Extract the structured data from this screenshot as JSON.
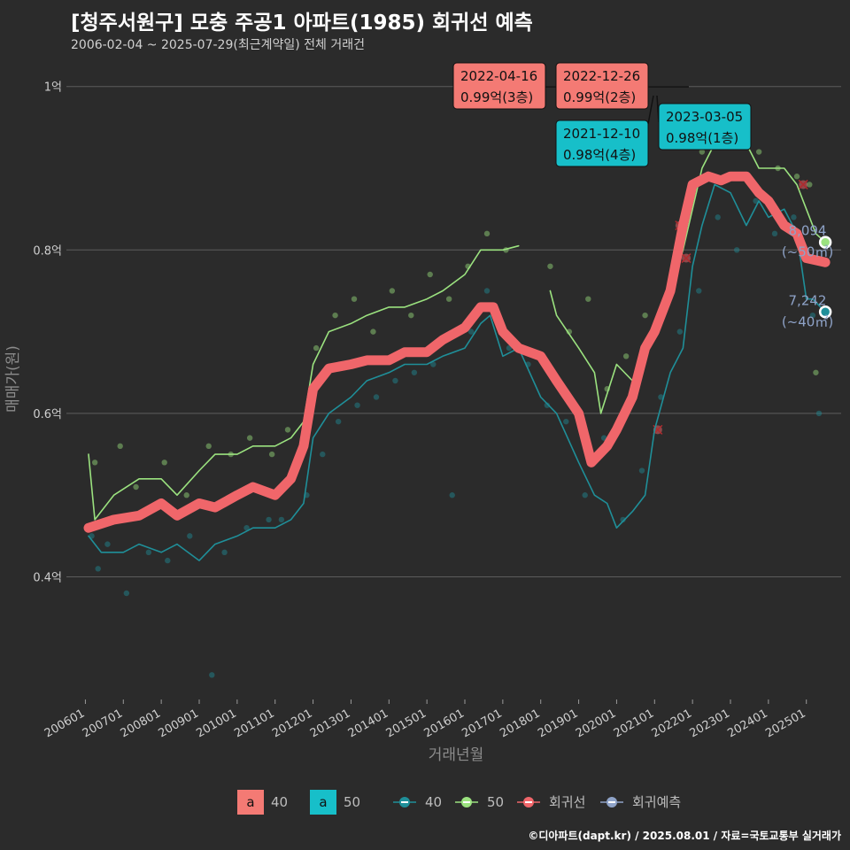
{
  "header": {
    "title": "[청주서원구] 모충 주공1 아파트(1985) 회귀선 예측",
    "subtitle": "2006-02-04 ~ 2025-07-29(최근계약일) 전체 거래건"
  },
  "footer": {
    "credit": "©디아파트(dapt.kr) / 2025.08.01 / 자료=국토교통부 실거래가"
  },
  "colors": {
    "bg": "#2b2b2b",
    "grid": "#5c5c5c",
    "s40": "#1f8f99",
    "s50": "#9be27f",
    "reg": "#f0666a",
    "pred": "#8fa3c8",
    "ann_red": "#f47a74",
    "ann_cyan": "#17bfc9"
  },
  "chart_data": {
    "type": "line",
    "xlabel": "거래년월",
    "ylabel": "매매가(원)",
    "y_ticks": [
      {
        "value": 0.4,
        "label": "0.4억"
      },
      {
        "value": 0.6,
        "label": "0.6억"
      },
      {
        "value": 0.8,
        "label": "0.8억"
      },
      {
        "value": 1.0,
        "label": "1억"
      }
    ],
    "x_ticks": [
      "200601",
      "200701",
      "200801",
      "200901",
      "201001",
      "201101",
      "201201",
      "201301",
      "201401",
      "201501",
      "201601",
      "201701",
      "201801",
      "201901",
      "202001",
      "202101",
      "202201",
      "202301",
      "202401",
      "202501"
    ],
    "ylim": [
      0.25,
      1.03
    ],
    "xlim": [
      "2005-07",
      "2025-12"
    ],
    "series": [
      {
        "name": "40",
        "values": [
          [
            "2006-02",
            0.45
          ],
          [
            "2006-06",
            0.43
          ],
          [
            "2007-01",
            0.43
          ],
          [
            "2007-06",
            0.44
          ],
          [
            "2008-01",
            0.43
          ],
          [
            "2008-06",
            0.44
          ],
          [
            "2009-01",
            0.42
          ],
          [
            "2009-06",
            0.44
          ],
          [
            "2010-01",
            0.45
          ],
          [
            "2010-06",
            0.46
          ],
          [
            "2011-01",
            0.46
          ],
          [
            "2011-06",
            0.47
          ],
          [
            "2011-10",
            0.49
          ],
          [
            "2012-01",
            0.57
          ],
          [
            "2012-06",
            0.6
          ],
          [
            "2013-01",
            0.62
          ],
          [
            "2013-06",
            0.64
          ],
          [
            "2014-01",
            0.65
          ],
          [
            "2014-06",
            0.66
          ],
          [
            "2015-01",
            0.66
          ],
          [
            "2015-06",
            0.67
          ],
          [
            "2016-01",
            0.68
          ],
          [
            "2016-06",
            0.71
          ],
          [
            "2016-09",
            0.72
          ],
          [
            "2017-01",
            0.67
          ],
          [
            "2017-06",
            0.68
          ],
          [
            "2018-01",
            0.62
          ],
          [
            "2018-06",
            0.6
          ],
          [
            "2019-01",
            0.54
          ],
          [
            "2019-06",
            0.5
          ],
          [
            "2019-10",
            0.49
          ],
          [
            "2020-01",
            0.46
          ],
          [
            "2020-06",
            0.48
          ],
          [
            "2020-10",
            0.5
          ],
          [
            "2021-01",
            0.58
          ],
          [
            "2021-06",
            0.65
          ],
          [
            "2021-10",
            0.68
          ],
          [
            "2022-01",
            0.78
          ],
          [
            "2022-04",
            0.83
          ],
          [
            "2022-08",
            0.88
          ],
          [
            "2023-01",
            0.87
          ],
          [
            "2023-06",
            0.83
          ],
          [
            "2023-10",
            0.86
          ],
          [
            "2024-01",
            0.84
          ],
          [
            "2024-06",
            0.85
          ],
          [
            "2024-10",
            0.82
          ],
          [
            "2025-01",
            0.74
          ],
          [
            "2025-03",
            0.74
          ],
          [
            "2025-07",
            0.7242
          ]
        ]
      },
      {
        "name": "50",
        "values": [
          [
            "2006-02",
            0.55
          ],
          [
            "2006-04",
            0.47
          ],
          [
            "2006-10",
            0.5
          ],
          [
            "2007-06",
            0.52
          ],
          [
            "2008-01",
            0.52
          ],
          [
            "2008-06",
            0.5
          ],
          [
            "2009-01",
            0.53
          ],
          [
            "2009-06",
            0.55
          ],
          [
            "2010-01",
            0.55
          ],
          [
            "2010-06",
            0.56
          ],
          [
            "2011-01",
            0.56
          ],
          [
            "2011-06",
            0.57
          ],
          [
            "2011-10",
            0.59
          ],
          [
            "2012-01",
            0.66
          ],
          [
            "2012-06",
            0.7
          ],
          [
            "2013-01",
            0.71
          ],
          [
            "2013-06",
            0.72
          ],
          [
            "2014-01",
            0.73
          ],
          [
            "2014-06",
            0.73
          ],
          [
            "2015-01",
            0.74
          ],
          [
            "2015-06",
            0.75
          ],
          [
            "2016-01",
            0.77
          ],
          [
            "2016-06",
            0.8
          ],
          [
            "2017-01",
            0.8
          ],
          [
            "2017-06",
            0.805
          ],
          null,
          [
            "2018-04",
            0.75
          ],
          [
            "2018-06",
            0.72
          ],
          [
            "2019-01",
            0.68
          ],
          [
            "2019-06",
            0.65
          ],
          [
            "2019-08",
            0.6
          ],
          [
            "2020-01",
            0.66
          ],
          [
            "2020-06",
            0.64
          ],
          [
            "2020-10",
            0.68
          ],
          [
            "2021-01",
            0.7
          ],
          [
            "2021-06",
            0.75
          ],
          [
            "2021-10",
            0.8
          ],
          [
            "2022-01",
            0.85
          ],
          [
            "2022-04",
            0.9
          ],
          [
            "2022-08",
            0.93
          ],
          [
            "2023-01",
            0.95
          ],
          [
            "2023-06",
            0.93
          ],
          [
            "2023-10",
            0.9
          ],
          [
            "2024-01",
            0.9
          ],
          [
            "2024-06",
            0.9
          ],
          [
            "2024-10",
            0.88
          ],
          [
            "2025-01",
            0.85
          ],
          [
            "2025-04",
            0.82
          ],
          [
            "2025-07",
            0.8094
          ]
        ]
      },
      {
        "name": "회귀선",
        "values": [
          [
            "2006-02",
            0.46
          ],
          [
            "2006-10",
            0.47
          ],
          [
            "2007-06",
            0.475
          ],
          [
            "2008-01",
            0.49
          ],
          [
            "2008-06",
            0.475
          ],
          [
            "2009-01",
            0.49
          ],
          [
            "2009-06",
            0.485
          ],
          [
            "2010-01",
            0.5
          ],
          [
            "2010-06",
            0.51
          ],
          [
            "2011-01",
            0.5
          ],
          [
            "2011-06",
            0.52
          ],
          [
            "2011-10",
            0.56
          ],
          [
            "2012-01",
            0.63
          ],
          [
            "2012-06",
            0.655
          ],
          [
            "2013-01",
            0.66
          ],
          [
            "2013-06",
            0.665
          ],
          [
            "2014-01",
            0.665
          ],
          [
            "2014-06",
            0.675
          ],
          [
            "2015-01",
            0.675
          ],
          [
            "2015-06",
            0.69
          ],
          [
            "2016-01",
            0.705
          ],
          [
            "2016-06",
            0.73
          ],
          [
            "2016-10",
            0.73
          ],
          [
            "2017-01",
            0.7
          ],
          [
            "2017-06",
            0.68
          ],
          [
            "2018-01",
            0.67
          ],
          [
            "2018-06",
            0.64
          ],
          [
            "2019-01",
            0.6
          ],
          [
            "2019-05",
            0.54
          ],
          [
            "2019-10",
            0.56
          ],
          [
            "2020-01",
            0.58
          ],
          [
            "2020-06",
            0.62
          ],
          [
            "2020-10",
            0.68
          ],
          [
            "2021-01",
            0.7
          ],
          [
            "2021-06",
            0.75
          ],
          [
            "2021-10",
            0.83
          ],
          [
            "2022-01",
            0.88
          ],
          [
            "2022-06",
            0.89
          ],
          [
            "2022-10",
            0.885
          ],
          [
            "2023-01",
            0.89
          ],
          [
            "2023-06",
            0.89
          ],
          [
            "2023-10",
            0.87
          ],
          [
            "2024-01",
            0.86
          ],
          [
            "2024-06",
            0.83
          ],
          [
            "2024-10",
            0.82
          ],
          [
            "2025-01",
            0.79
          ],
          [
            "2025-07",
            0.785
          ]
        ]
      }
    ],
    "scatter_40": [
      [
        "2006-03",
        0.45
      ],
      [
        "2006-05",
        0.41
      ],
      [
        "2006-08",
        0.44
      ],
      [
        "2007-02",
        0.38
      ],
      [
        "2007-09",
        0.43
      ],
      [
        "2008-03",
        0.42
      ],
      [
        "2008-10",
        0.45
      ],
      [
        "2009-05",
        0.28
      ],
      [
        "2009-09",
        0.43
      ],
      [
        "2010-04",
        0.46
      ],
      [
        "2010-11",
        0.47
      ],
      [
        "2011-03",
        0.47
      ],
      [
        "2011-11",
        0.5
      ],
      [
        "2012-04",
        0.55
      ],
      [
        "2012-09",
        0.59
      ],
      [
        "2013-03",
        0.61
      ],
      [
        "2013-09",
        0.62
      ],
      [
        "2014-03",
        0.64
      ],
      [
        "2014-09",
        0.65
      ],
      [
        "2015-03",
        0.66
      ],
      [
        "2015-09",
        0.5
      ],
      [
        "2016-03",
        0.7
      ],
      [
        "2016-08",
        0.75
      ],
      [
        "2017-03",
        0.68
      ],
      [
        "2017-09",
        0.66
      ],
      [
        "2018-03",
        0.61
      ],
      [
        "2018-09",
        0.59
      ],
      [
        "2019-03",
        0.5
      ],
      [
        "2019-09",
        0.57
      ],
      [
        "2020-03",
        0.47
      ],
      [
        "2020-09",
        0.53
      ],
      [
        "2021-03",
        0.62
      ],
      [
        "2021-09",
        0.7
      ],
      [
        "2022-03",
        0.75
      ],
      [
        "2022-09",
        0.84
      ],
      [
        "2023-03",
        0.8
      ],
      [
        "2023-09",
        0.86
      ],
      [
        "2024-03",
        0.82
      ],
      [
        "2024-09",
        0.84
      ],
      [
        "2025-03",
        0.72
      ],
      [
        "2025-05",
        0.6
      ]
    ],
    "scatter_50": [
      [
        "2006-04",
        0.54
      ],
      [
        "2006-12",
        0.56
      ],
      [
        "2007-05",
        0.51
      ],
      [
        "2008-02",
        0.54
      ],
      [
        "2008-09",
        0.5
      ],
      [
        "2009-04",
        0.56
      ],
      [
        "2009-11",
        0.55
      ],
      [
        "2010-05",
        0.57
      ],
      [
        "2010-12",
        0.55
      ],
      [
        "2011-05",
        0.58
      ],
      [
        "2012-02",
        0.68
      ],
      [
        "2012-08",
        0.72
      ],
      [
        "2013-02",
        0.74
      ],
      [
        "2013-08",
        0.7
      ],
      [
        "2014-02",
        0.75
      ],
      [
        "2014-08",
        0.72
      ],
      [
        "2015-02",
        0.77
      ],
      [
        "2015-08",
        0.74
      ],
      [
        "2016-02",
        0.78
      ],
      [
        "2016-08",
        0.82
      ],
      [
        "2017-02",
        0.8
      ],
      [
        "2018-04",
        0.78
      ],
      [
        "2018-10",
        0.7
      ],
      [
        "2019-04",
        0.74
      ],
      [
        "2019-10",
        0.63
      ],
      [
        "2020-04",
        0.67
      ],
      [
        "2020-10",
        0.72
      ],
      [
        "2021-04",
        0.73
      ],
      [
        "2021-10",
        0.82
      ],
      [
        "2022-04",
        0.92
      ],
      [
        "2022-10",
        0.96
      ],
      [
        "2023-04",
        0.93
      ],
      [
        "2023-10",
        0.92
      ],
      [
        "2024-04",
        0.9
      ],
      [
        "2024-10",
        0.89
      ],
      [
        "2025-02",
        0.88
      ],
      [
        "2025-04",
        0.65
      ]
    ],
    "scatter_reg": [
      [
        "2021-02",
        0.58
      ],
      [
        "2021-09",
        0.83
      ],
      [
        "2021-11",
        0.79
      ],
      [
        "2024-12",
        0.88
      ]
    ],
    "annotations": [
      {
        "date": "2022-04-16",
        "value": "0.99억(3층)",
        "color": "red"
      },
      {
        "date": "2022-12-26",
        "value": "0.99억(2층)",
        "color": "red"
      },
      {
        "date": "2021-12-10",
        "value": "0.98억(4층)",
        "color": "cyan"
      },
      {
        "date": "2023-03-05",
        "value": "0.98억(1층)",
        "color": "cyan"
      }
    ],
    "end_labels": [
      {
        "price": "8,094",
        "area": "(~50㎡)",
        "y": 0.8094,
        "series": "50"
      },
      {
        "price": "7,242",
        "area": "(~40㎡)",
        "y": 0.7242,
        "series": "40"
      }
    ],
    "legend": {
      "box_items": [
        {
          "letter": "a",
          "label": "40",
          "color": "red"
        },
        {
          "letter": "a",
          "label": "50",
          "color": "cyan"
        }
      ],
      "line_items": [
        {
          "label": "40"
        },
        {
          "label": "50"
        },
        {
          "label": "회귀선"
        },
        {
          "label": "회귀예측"
        }
      ],
      "placement": "bottom"
    }
  }
}
